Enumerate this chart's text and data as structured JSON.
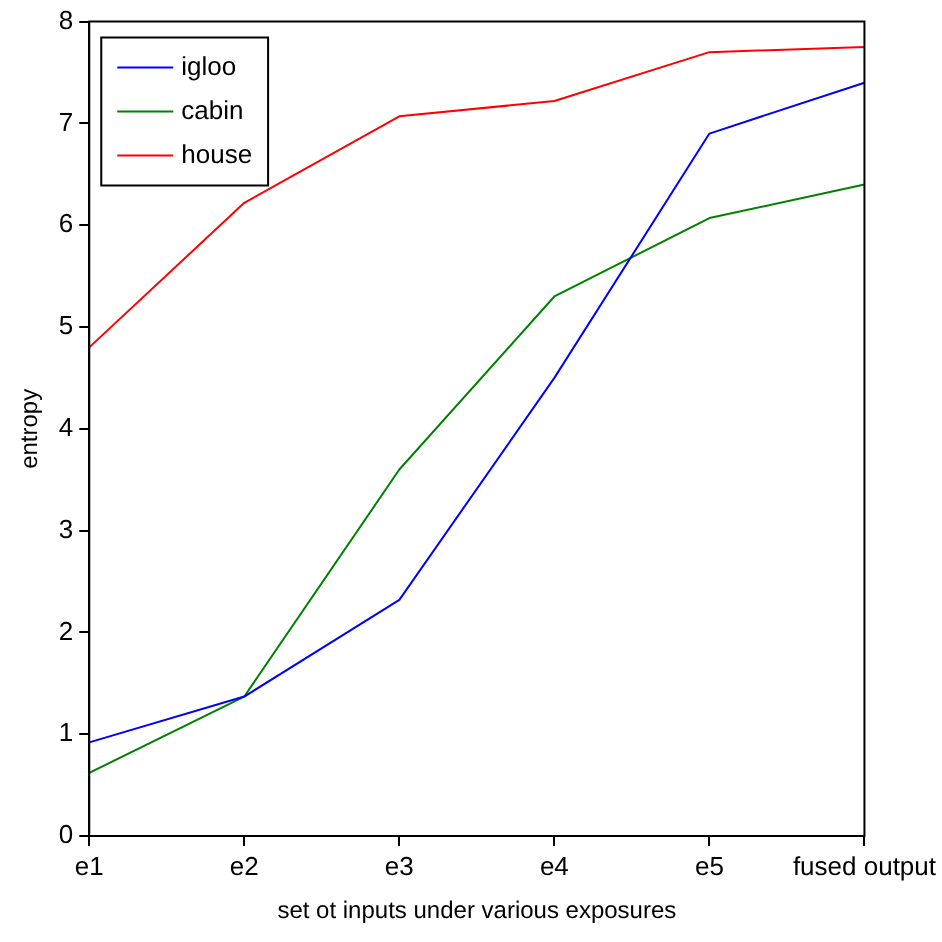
{
  "chart_data": {
    "type": "line",
    "xlabel": "set ot inputs under various exposures",
    "ylabel": "entropy",
    "categories": [
      "e1",
      "e2",
      "e3",
      "e4",
      "e5",
      "fused output"
    ],
    "series": [
      {
        "name": "igloo",
        "color": "#0000ff",
        "values": [
          0.92,
          1.37,
          2.32,
          4.5,
          6.9,
          7.4
        ]
      },
      {
        "name": "cabin",
        "color": "#008000",
        "values": [
          0.62,
          1.37,
          3.6,
          5.3,
          6.07,
          6.4
        ]
      },
      {
        "name": "house",
        "color": "#ff0000",
        "values": [
          4.8,
          6.22,
          7.07,
          7.22,
          7.7,
          7.75
        ]
      }
    ],
    "ylim": [
      0,
      8
    ],
    "yticks": [
      0,
      1,
      2,
      3,
      4,
      5,
      6,
      7,
      8
    ],
    "grid": false,
    "legend": "top left",
    "marker": "none",
    "line_style": "solid"
  }
}
